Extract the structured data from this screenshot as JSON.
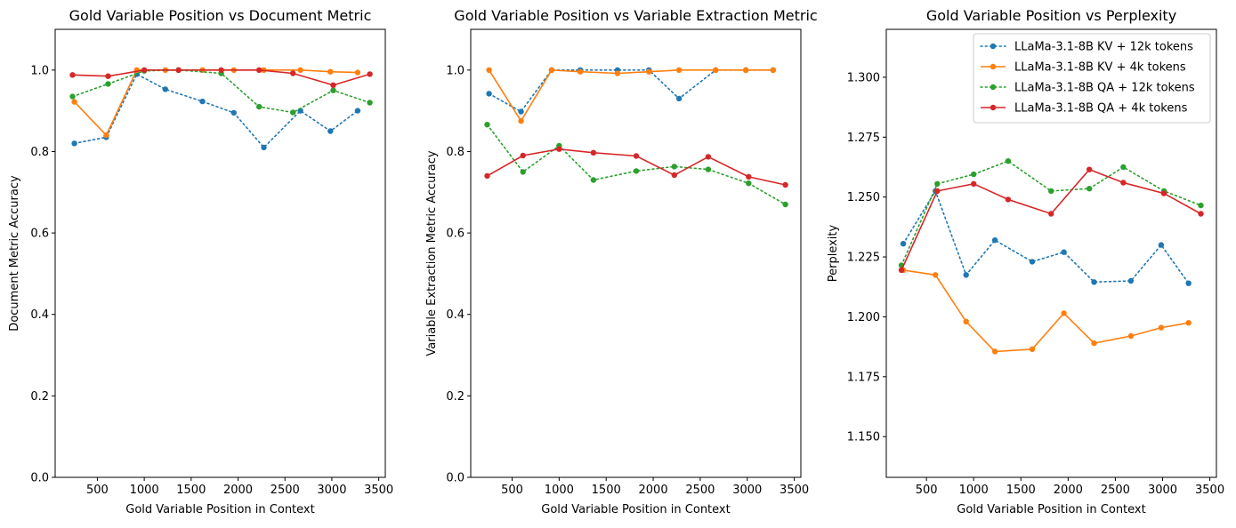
{
  "chart_data": [
    {
      "type": "line",
      "title": "Gold Variable Position vs Document Metric",
      "xlabel": "Gold Variable Position in Context",
      "ylabel": "Document Metric Accuracy",
      "xlim": [
        50,
        3570
      ],
      "ylim": [
        0.0,
        1.1
      ],
      "xticks": [
        500,
        1000,
        1500,
        2000,
        2500,
        3000,
        3500
      ],
      "xtick_labels": [
        "500",
        "1000",
        "1500",
        "2000",
        "2500",
        "3000",
        "3500"
      ],
      "yticks": [
        0.0,
        0.2,
        0.4,
        0.6,
        0.8,
        1.0
      ],
      "ytick_labels": [
        "0.0",
        "0.2",
        "0.4",
        "0.6",
        "0.8",
        "1.0"
      ],
      "legend": false,
      "series": [
        {
          "name": "LLaMa-3.1-8B KV + 12k tokens",
          "color": "#1f77b4",
          "style": "dotted",
          "x": [
            255,
            595,
            920,
            1225,
            1620,
            1955,
            2275,
            2665,
            2985,
            3275
          ],
          "y": [
            0.82,
            0.835,
            0.99,
            0.953,
            0.923,
            0.895,
            0.81,
            0.9,
            0.85,
            0.9
          ]
        },
        {
          "name": "LLaMa-3.1-8B KV + 4k tokens",
          "color": "#ff7f0e",
          "style": "solid",
          "x": [
            255,
            595,
            920,
            1225,
            1620,
            1955,
            2275,
            2665,
            2985,
            3275
          ],
          "y": [
            0.922,
            0.84,
            1.0,
            1.0,
            1.0,
            1.0,
            1.0,
            1.0,
            0.996,
            0.994
          ]
        },
        {
          "name": "LLaMa-3.1-8B QA + 12k tokens",
          "color": "#2ca02c",
          "style": "dotted",
          "x": [
            235,
            615,
            1000,
            1365,
            1820,
            2225,
            2585,
            3015,
            3405
          ],
          "y": [
            0.935,
            0.966,
            0.998,
            1.0,
            0.992,
            0.91,
            0.896,
            0.95,
            0.92
          ]
        },
        {
          "name": "LLaMa-3.1-8B QA + 4k tokens",
          "color": "#d62728",
          "style": "solid",
          "x": [
            235,
            615,
            1000,
            1365,
            1820,
            2225,
            2585,
            3015,
            3405
          ],
          "y": [
            0.988,
            0.985,
            1.0,
            1.0,
            1.0,
            1.0,
            0.992,
            0.963,
            0.99
          ]
        }
      ]
    },
    {
      "type": "line",
      "title": "Gold Variable Position vs Variable Extraction Metric",
      "xlabel": "Gold Variable Position in Context",
      "ylabel": "Variable Extraction Metric Accuracy",
      "xlim": [
        60,
        3570
      ],
      "ylim": [
        0.0,
        1.1
      ],
      "xticks": [
        500,
        1000,
        1500,
        2000,
        2500,
        3000,
        3500
      ],
      "xtick_labels": [
        "500",
        "1000",
        "1500",
        "2000",
        "2500",
        "3000",
        "3500"
      ],
      "yticks": [
        0.0,
        0.2,
        0.4,
        0.6,
        0.8,
        1.0
      ],
      "ytick_labels": [
        "0.0",
        "0.2",
        "0.4",
        "0.6",
        "0.8",
        "1.0"
      ],
      "legend": false,
      "series": [
        {
          "name": "LLaMa-3.1-8B KV + 12k tokens",
          "color": "#1f77b4",
          "style": "dotted",
          "x": [
            255,
            595,
            920,
            1225,
            1620,
            1955,
            2275,
            2665,
            2985,
            3275
          ],
          "y": [
            0.942,
            0.898,
            1.0,
            1.0,
            1.0,
            1.0,
            0.93,
            1.0,
            1.0,
            1.0
          ]
        },
        {
          "name": "LLaMa-3.1-8B KV + 4k tokens",
          "color": "#ff7f0e",
          "style": "solid",
          "x": [
            255,
            595,
            920,
            1225,
            1620,
            1955,
            2275,
            2665,
            2985,
            3275
          ],
          "y": [
            1.0,
            0.875,
            1.0,
            0.996,
            0.992,
            0.996,
            1.0,
            1.0,
            1.0,
            1.0
          ]
        },
        {
          "name": "LLaMa-3.1-8B QA + 12k tokens",
          "color": "#2ca02c",
          "style": "dotted",
          "x": [
            235,
            615,
            1000,
            1365,
            1820,
            2225,
            2585,
            3015,
            3405
          ],
          "y": [
            0.866,
            0.75,
            0.814,
            0.73,
            0.752,
            0.763,
            0.756,
            0.722,
            0.67
          ]
        },
        {
          "name": "LLaMa-3.1-8B QA + 4k tokens",
          "color": "#d62728",
          "style": "solid",
          "x": [
            235,
            615,
            1000,
            1365,
            1820,
            2225,
            2585,
            3015,
            3405
          ],
          "y": [
            0.74,
            0.79,
            0.806,
            0.797,
            0.789,
            0.742,
            0.787,
            0.738,
            0.718
          ]
        }
      ]
    },
    {
      "type": "line",
      "title": "Gold Variable Position vs Perplexity",
      "xlabel": "Gold Variable Position in Context",
      "ylabel": "Perplexity",
      "xlim": [
        75,
        3570
      ],
      "ylim": [
        1.133,
        1.32
      ],
      "xticks": [
        500,
        1000,
        1500,
        2000,
        2500,
        3000,
        3500
      ],
      "xtick_labels": [
        "500",
        "1000",
        "1500",
        "2000",
        "2500",
        "3000",
        "3500"
      ],
      "yticks": [
        1.15,
        1.175,
        1.2,
        1.225,
        1.25,
        1.275,
        1.3
      ],
      "ytick_labels": [
        "1.150",
        "1.175",
        "1.200",
        "1.225",
        "1.250",
        "1.275",
        "1.300"
      ],
      "legend": "top-right",
      "series": [
        {
          "name": "LLaMa-3.1-8B KV + 12k tokens",
          "color": "#1f77b4",
          "style": "dotted",
          "x": [
            255,
            595,
            920,
            1225,
            1620,
            1955,
            2275,
            2665,
            2985,
            3275
          ],
          "y": [
            1.2305,
            1.2525,
            1.2175,
            1.232,
            1.223,
            1.227,
            1.2145,
            1.215,
            1.23,
            1.214
          ]
        },
        {
          "name": "LLaMa-3.1-8B KV + 4k tokens",
          "color": "#ff7f0e",
          "style": "solid",
          "x": [
            255,
            595,
            920,
            1225,
            1620,
            1955,
            2275,
            2665,
            2985,
            3275
          ],
          "y": [
            1.2195,
            1.2175,
            1.198,
            1.1855,
            1.1865,
            1.2015,
            1.189,
            1.192,
            1.1955,
            1.1975
          ]
        },
        {
          "name": "LLaMa-3.1-8B QA + 12k tokens",
          "color": "#2ca02c",
          "style": "dotted",
          "x": [
            235,
            615,
            1000,
            1365,
            1820,
            2225,
            2585,
            3015,
            3405
          ],
          "y": [
            1.2215,
            1.2555,
            1.2595,
            1.265,
            1.2525,
            1.2535,
            1.2625,
            1.2525,
            1.2465
          ]
        },
        {
          "name": "LLaMa-3.1-8B QA + 4k tokens",
          "color": "#d62728",
          "style": "solid",
          "x": [
            235,
            615,
            1000,
            1365,
            1820,
            2225,
            2585,
            3015,
            3405
          ],
          "y": [
            1.2195,
            1.2525,
            1.2555,
            1.249,
            1.243,
            1.2615,
            1.256,
            1.2515,
            1.243
          ]
        }
      ]
    }
  ]
}
